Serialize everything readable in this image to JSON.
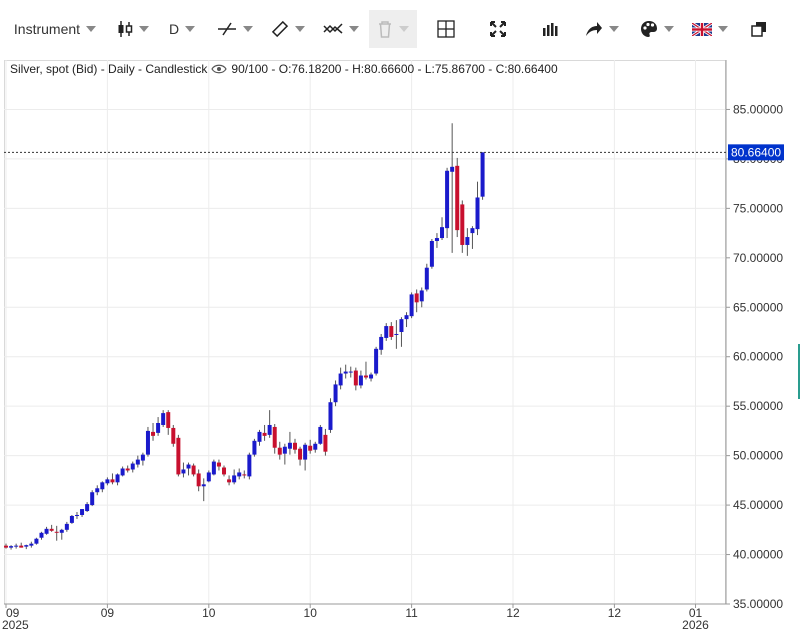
{
  "toolbar": {
    "instrument_label": "Instrument",
    "timeframe_label": "D",
    "icons": [
      "candlestick-icon",
      "line-draw-icon",
      "ruler-icon",
      "indicator-icon",
      "trash-icon",
      "crosshair-icon",
      "fullscreen-icon",
      "bars-icon",
      "share-icon",
      "palette-icon",
      "uk-flag-icon",
      "window-icon"
    ]
  },
  "info": {
    "prefix": "Silver, spot (Bid) - Daily - Candlestick",
    "stats": "90/100 - O:76.18200 - H:80.66600 - L:75.86700 - C:80.66400"
  },
  "chart_data": {
    "type": "candlestick",
    "title": "Silver, spot (Bid) - Daily - Candlestick",
    "ylim": [
      35,
      90
    ],
    "yticks": [
      "35.00000",
      "40.00000",
      "45.00000",
      "50.00000",
      "55.00000",
      "60.00000",
      "65.00000",
      "70.00000",
      "75.00000",
      "80.00000",
      "85.00000"
    ],
    "last_price": "80.66400",
    "xticks": [
      {
        "month": "09",
        "year": "2025",
        "bar": 0
      },
      {
        "month": "09",
        "year": "",
        "bar": 20
      },
      {
        "month": "10",
        "year": "",
        "bar": 40
      },
      {
        "month": "10",
        "year": "",
        "bar": 60
      },
      {
        "month": "11",
        "year": "",
        "bar": 80
      },
      {
        "month": "12",
        "year": "",
        "bar": 100
      },
      {
        "month": "12",
        "year": "",
        "bar": 120
      },
      {
        "month": "01",
        "year": "2026",
        "bar": 136
      }
    ],
    "colors": {
      "up": "#1a1acb",
      "down": "#c8102e",
      "wick": "#555555",
      "price_tag": "#0033cc"
    },
    "candles": [
      [
        40.9,
        41.1,
        40.6,
        40.7
      ],
      [
        40.7,
        40.95,
        40.5,
        40.85
      ],
      [
        40.8,
        41.1,
        40.6,
        40.9
      ],
      [
        40.9,
        41.2,
        40.7,
        40.7
      ],
      [
        40.8,
        41.0,
        40.55,
        40.95
      ],
      [
        40.9,
        41.3,
        40.7,
        41.1
      ],
      [
        41.1,
        41.7,
        41.0,
        41.6
      ],
      [
        41.7,
        42.3,
        41.5,
        42.2
      ],
      [
        42.1,
        42.8,
        42.0,
        42.6
      ],
      [
        42.6,
        43.0,
        42.3,
        42.4
      ],
      [
        42.3,
        42.9,
        41.4,
        42.2
      ],
      [
        42.2,
        42.6,
        41.5,
        42.5
      ],
      [
        42.5,
        43.3,
        42.3,
        43.1
      ],
      [
        43.2,
        44.0,
        43.1,
        43.9
      ],
      [
        43.9,
        44.3,
        43.6,
        44.0
      ],
      [
        44.0,
        44.6,
        43.8,
        44.6
      ],
      [
        44.4,
        45.3,
        44.3,
        45.1
      ],
      [
        45.0,
        46.5,
        44.9,
        46.3
      ],
      [
        46.3,
        47.0,
        46.0,
        46.7
      ],
      [
        46.6,
        47.4,
        46.3,
        47.3
      ],
      [
        47.2,
        47.8,
        47.0,
        47.6
      ],
      [
        47.6,
        48.2,
        47.1,
        47.3
      ],
      [
        47.3,
        48.2,
        47.0,
        48.1
      ],
      [
        48.0,
        48.9,
        47.9,
        48.7
      ],
      [
        48.7,
        49.0,
        48.3,
        48.5
      ],
      [
        48.6,
        49.4,
        48.3,
        49.2
      ],
      [
        49.1,
        50.0,
        48.8,
        49.6
      ],
      [
        49.5,
        50.3,
        49.0,
        50.1
      ],
      [
        50.1,
        52.9,
        49.9,
        52.5
      ],
      [
        52.4,
        53.3,
        51.5,
        52.0
      ],
      [
        52.3,
        53.9,
        52.0,
        53.3
      ],
      [
        53.1,
        54.6,
        52.9,
        54.3
      ],
      [
        54.4,
        54.6,
        52.1,
        52.8
      ],
      [
        52.8,
        53.1,
        50.9,
        51.2
      ],
      [
        51.8,
        52.1,
        47.9,
        48.1
      ],
      [
        48.2,
        49.3,
        47.8,
        48.6
      ],
      [
        48.7,
        49.3,
        48.0,
        49.1
      ],
      [
        49.0,
        49.2,
        47.9,
        48.1
      ],
      [
        48.2,
        48.6,
        46.4,
        46.9
      ],
      [
        46.9,
        47.7,
        45.4,
        47.1
      ],
      [
        47.4,
        48.5,
        47.3,
        48.3
      ],
      [
        48.1,
        49.6,
        48.0,
        49.4
      ],
      [
        49.3,
        49.6,
        48.5,
        48.9
      ],
      [
        48.8,
        49.0,
        47.9,
        48.1
      ],
      [
        47.6,
        48.0,
        47.0,
        47.3
      ],
      [
        47.3,
        48.6,
        47.1,
        48.0
      ],
      [
        47.9,
        48.7,
        47.6,
        48.3
      ],
      [
        48.1,
        48.5,
        47.7,
        48.0
      ],
      [
        47.9,
        50.3,
        47.6,
        50.1
      ],
      [
        50.1,
        51.7,
        49.9,
        51.5
      ],
      [
        51.4,
        52.6,
        51.0,
        52.4
      ],
      [
        52.3,
        53.1,
        51.5,
        52.0
      ],
      [
        52.1,
        54.6,
        51.8,
        53.1
      ],
      [
        52.9,
        53.2,
        50.2,
        50.8
      ],
      [
        50.8,
        51.4,
        49.6,
        50.1
      ],
      [
        50.2,
        51.2,
        49.1,
        50.9
      ],
      [
        50.7,
        52.4,
        50.1,
        51.3
      ],
      [
        51.3,
        51.7,
        50.2,
        50.6
      ],
      [
        50.7,
        50.9,
        49.0,
        49.6
      ],
      [
        49.6,
        51.3,
        48.5,
        51.1
      ],
      [
        51.0,
        51.6,
        50.2,
        50.5
      ],
      [
        50.6,
        51.4,
        50.3,
        51.2
      ],
      [
        51.2,
        53.1,
        51.1,
        52.9
      ],
      [
        52.1,
        52.7,
        50.0,
        50.4
      ],
      [
        52.6,
        55.8,
        52.3,
        55.4
      ],
      [
        55.4,
        57.6,
        55.0,
        57.2
      ],
      [
        57.1,
        58.9,
        56.7,
        58.3
      ],
      [
        58.3,
        59.2,
        57.8,
        58.5
      ],
      [
        58.4,
        59.0,
        57.9,
        58.5
      ],
      [
        58.6,
        58.9,
        56.6,
        57.1
      ],
      [
        57.1,
        58.6,
        56.8,
        58.1
      ],
      [
        58.1,
        59.5,
        57.7,
        57.9
      ],
      [
        57.8,
        58.4,
        57.5,
        58.2
      ],
      [
        58.3,
        61.0,
        58.1,
        60.8
      ],
      [
        60.7,
        62.3,
        60.2,
        62.0
      ],
      [
        61.9,
        63.4,
        61.6,
        63.1
      ],
      [
        63.1,
        63.5,
        61.7,
        62.0
      ],
      [
        62.2,
        63.7,
        60.8,
        62.3
      ],
      [
        62.5,
        64.0,
        61.0,
        63.8
      ],
      [
        63.8,
        64.5,
        63.0,
        64.2
      ],
      [
        64.1,
        66.5,
        63.9,
        66.3
      ],
      [
        66.4,
        66.8,
        64.5,
        65.5
      ],
      [
        65.6,
        67.0,
        65.0,
        66.7
      ],
      [
        66.8,
        69.4,
        66.6,
        69.0
      ],
      [
        69.1,
        71.9,
        68.9,
        71.7
      ],
      [
        71.7,
        72.5,
        71.0,
        72.0
      ],
      [
        72.0,
        74.1,
        71.8,
        73.1
      ],
      [
        73.0,
        79.1,
        72.0,
        78.8
      ],
      [
        78.7,
        83.6,
        70.5,
        79.2
      ],
      [
        79.3,
        80.1,
        72.1,
        72.8
      ],
      [
        75.4,
        75.8,
        70.5,
        71.3
      ],
      [
        71.3,
        73.0,
        70.2,
        72.1
      ],
      [
        72.5,
        73.2,
        70.9,
        73.0
      ],
      [
        72.9,
        77.7,
        72.3,
        76.1
      ],
      [
        76.182,
        80.666,
        75.867,
        80.664
      ]
    ]
  }
}
